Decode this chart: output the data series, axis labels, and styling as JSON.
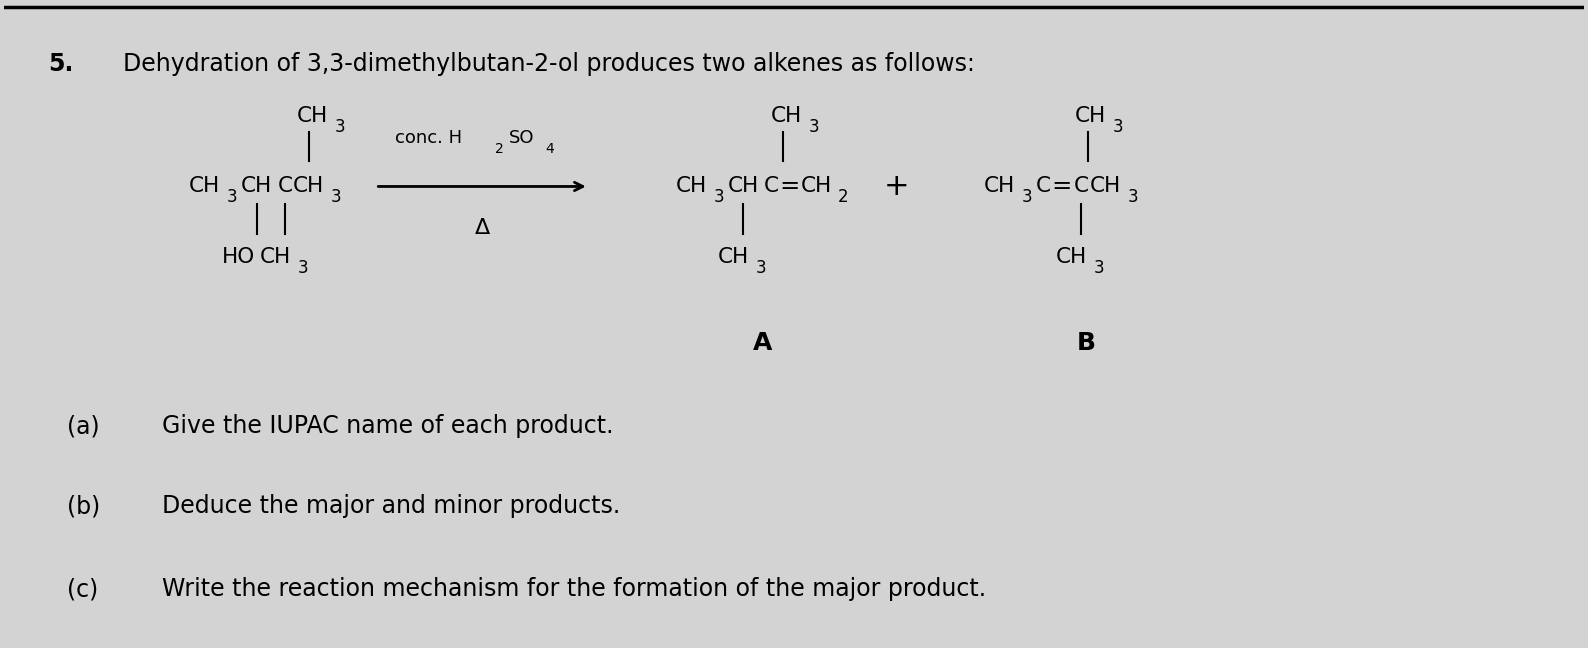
{
  "bg_color": "#d3d3d3",
  "fig_width": 15.88,
  "fig_height": 6.48,
  "title_number": "5.",
  "title_text": "Dehydration of 3,3-dimethylbutan-2-ol produces two alkenes as follows:",
  "question_a": "(a)",
  "question_a_text": "Give the IUPAC name of each product.",
  "question_b": "(b)",
  "question_b_text": "Deduce the major and minor products.",
  "question_c": "(c)",
  "question_c_text": "Write the reaction mechanism for the formation of the major product."
}
